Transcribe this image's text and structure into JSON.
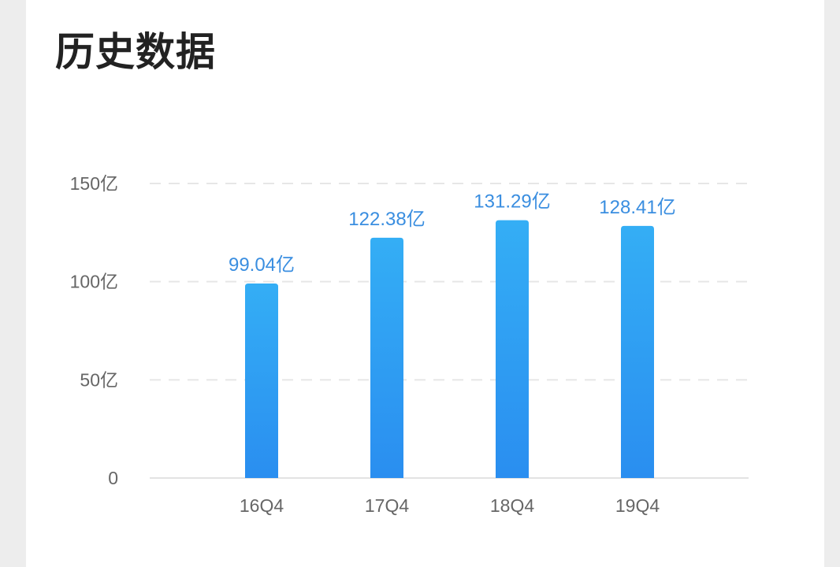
{
  "card": {
    "title": "历史数据"
  },
  "chart_data": {
    "type": "bar",
    "categories": [
      "16Q4",
      "17Q4",
      "18Q4",
      "19Q4"
    ],
    "values": [
      99.04,
      122.38,
      131.29,
      128.41
    ],
    "data_labels": [
      "99.04亿",
      "122.38亿",
      "131.29亿",
      "128.41亿"
    ],
    "yticks": [
      0,
      50,
      100,
      150
    ],
    "ytick_labels": [
      "0",
      "50亿",
      "100亿",
      "150亿"
    ],
    "ylim": [
      0,
      150
    ],
    "grid": "horizontal-dashed",
    "colors": {
      "bar_top": "#34aef5",
      "bar_bottom": "#2a8ef0",
      "label": "#3a8ee0",
      "axis_text": "#666666",
      "grid": "#e6e6e6"
    }
  }
}
